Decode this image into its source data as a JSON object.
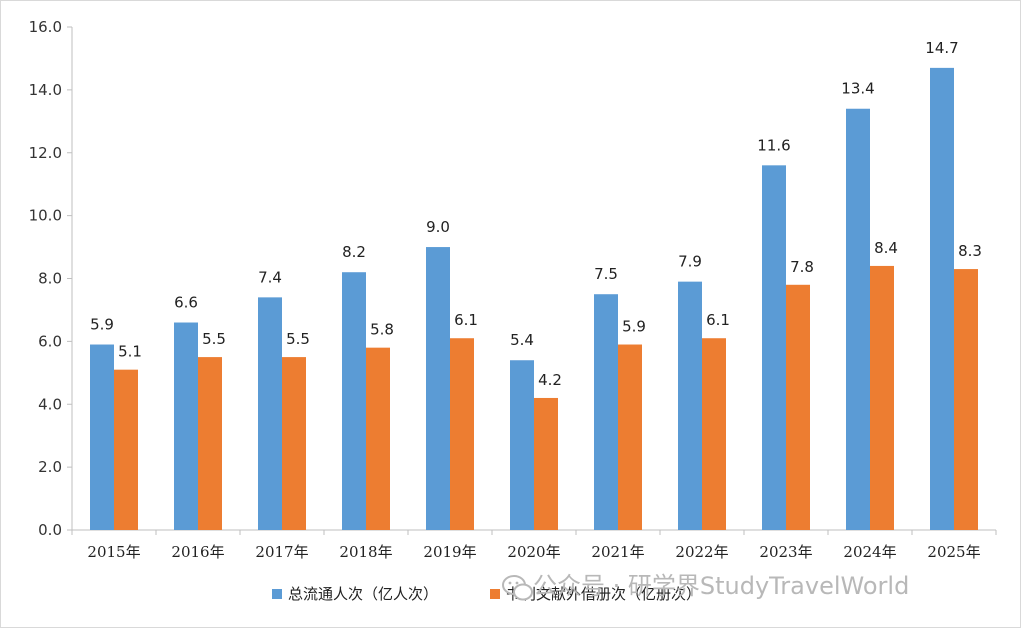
{
  "chart_data": {
    "type": "bar",
    "categories": [
      "2015年",
      "2016年",
      "2017年",
      "2018年",
      "2019年",
      "2020年",
      "2021年",
      "2022年",
      "2023年",
      "2024年",
      "2025年"
    ],
    "series": [
      {
        "name": "总流通人次（亿人次）",
        "color": "#5b9bd5",
        "values": [
          5.9,
          6.6,
          7.4,
          8.2,
          9.0,
          5.4,
          7.5,
          7.9,
          11.6,
          13.4,
          14.7
        ]
      },
      {
        "name": "书刊文献外借册次（亿册次）",
        "color": "#ed7d31",
        "values": [
          5.1,
          5.5,
          5.5,
          5.8,
          6.1,
          4.2,
          5.9,
          6.1,
          7.8,
          8.4,
          8.3
        ]
      }
    ],
    "ylim": [
      0,
      16
    ],
    "yticks": [
      "0.0",
      "2.0",
      "4.0",
      "6.0",
      "8.0",
      "10.0",
      "12.0",
      "14.0",
      "16.0"
    ],
    "grid": false,
    "legend_position": "bottom",
    "data_labels": true
  },
  "watermark": {
    "text": "公众号 · 研学界StudyTravelWorld",
    "icon": "wechat-icon"
  }
}
